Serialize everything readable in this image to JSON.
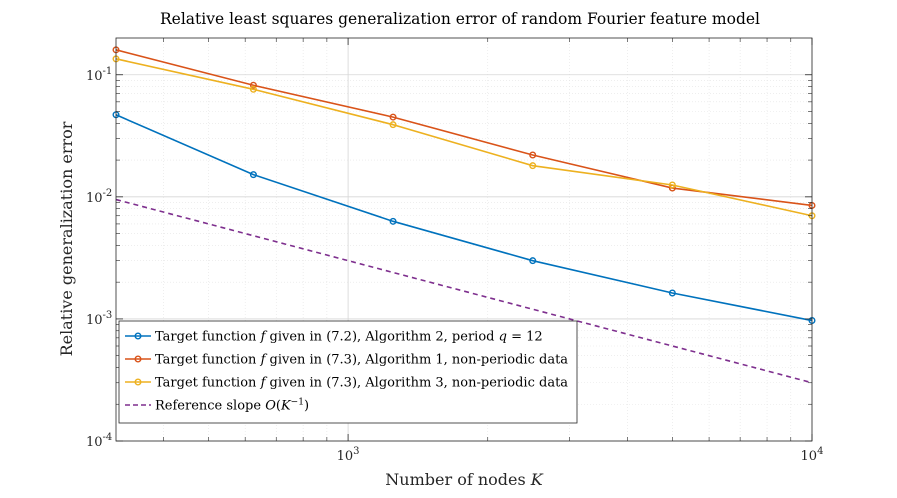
{
  "chart_data": {
    "type": "line",
    "title": "Relative least squares generalization error of random Fourier feature model",
    "xlabel": "Number of nodes K",
    "ylabel": "Relative generalization error",
    "xscale": "log",
    "yscale": "log",
    "xlim": [
      316,
      10000
    ],
    "ylim": [
      0.0001,
      0.2
    ],
    "grid": true,
    "legend_location": "bottom-left",
    "x_ticks": [
      {
        "value": 1000,
        "base": "10",
        "exp": "3"
      },
      {
        "value": 10000,
        "base": "10",
        "exp": "4"
      }
    ],
    "y_ticks": [
      {
        "value": 0.0001,
        "base": "10",
        "exp": "-4"
      },
      {
        "value": 0.001,
        "base": "10",
        "exp": "-3"
      },
      {
        "value": 0.01,
        "base": "10",
        "exp": "-2"
      },
      {
        "value": 0.1,
        "base": "10",
        "exp": "-1"
      }
    ],
    "series": [
      {
        "name": "Target function f given in (7.2), Algorithm 2, period q = 12",
        "legend_parts": [
          "Target function ",
          "f",
          " given in (7.2), Algorithm 2, period ",
          "q",
          " = 12"
        ],
        "color": "#0072BD",
        "style": "solid",
        "markers": true,
        "x": [
          316,
          625,
          1250,
          2500,
          5000,
          10000
        ],
        "y": [
          0.047,
          0.0152,
          0.0063,
          0.003,
          0.00163,
          0.00097
        ]
      },
      {
        "name": "Target function f given in (7.3), Algorithm 1, non-periodic data",
        "legend_parts": [
          "Target function ",
          "f",
          " given in (7.3), Algorithm 1, non-periodic data"
        ],
        "color": "#D95319",
        "style": "solid",
        "markers": true,
        "x": [
          316,
          625,
          1250,
          2500,
          5000,
          10000
        ],
        "y": [
          0.16,
          0.082,
          0.045,
          0.022,
          0.0118,
          0.0085
        ]
      },
      {
        "name": "Target function f given in (7.3), Algorithm 3, non-periodic data",
        "legend_parts": [
          "Target function ",
          "f",
          " given in (7.3), Algorithm 3, non-periodic data"
        ],
        "color": "#EDB120",
        "style": "solid",
        "markers": true,
        "x": [
          316,
          625,
          1250,
          2500,
          5000,
          10000
        ],
        "y": [
          0.135,
          0.076,
          0.039,
          0.018,
          0.0125,
          0.007
        ]
      },
      {
        "name": "Reference slope O(K^-1)",
        "legend_parts": [
          "Reference slope ",
          "O",
          "(",
          "K",
          "−1",
          ")"
        ],
        "color": "#7E2F8E",
        "style": "dashed",
        "markers": false,
        "x": [
          316,
          10000
        ],
        "y": [
          0.0095,
          0.0003
        ]
      }
    ]
  }
}
